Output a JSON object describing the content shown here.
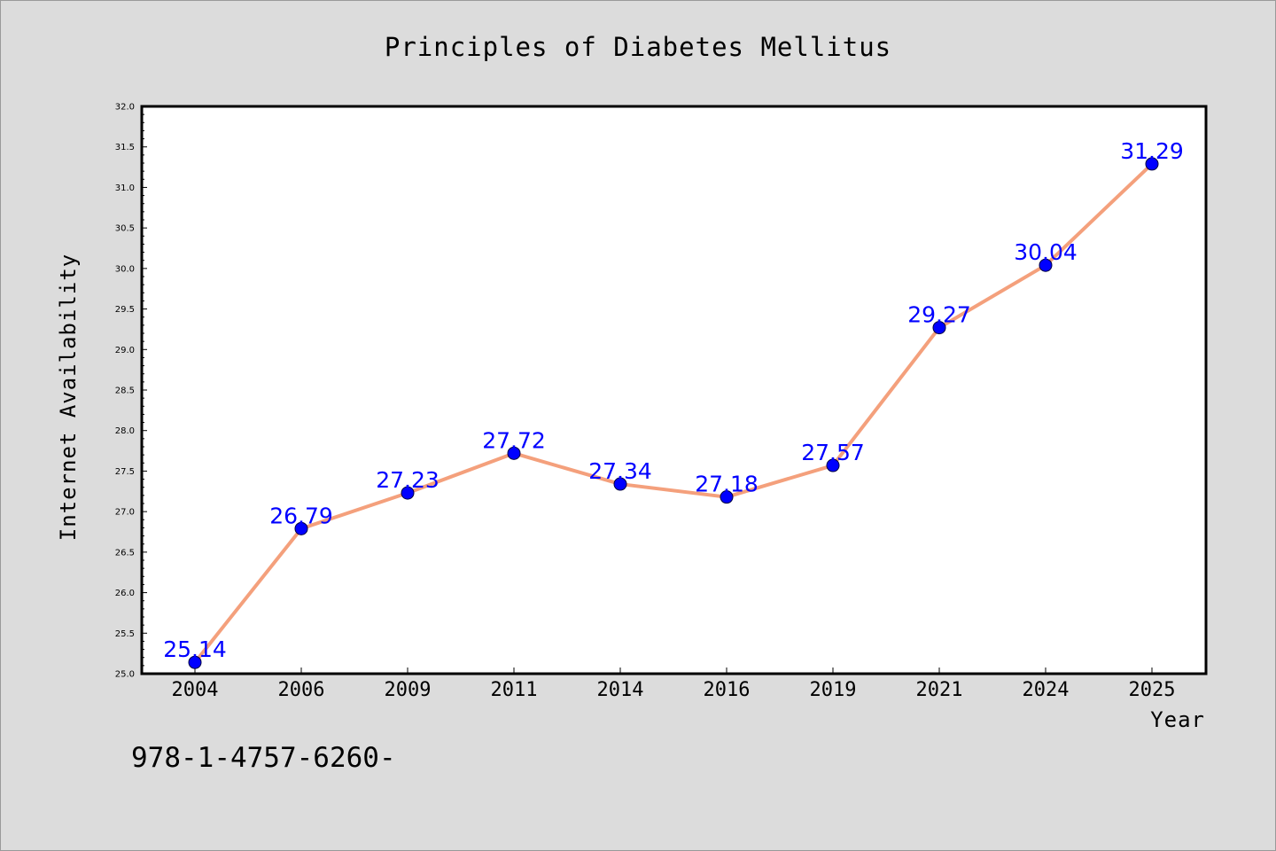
{
  "chart_data": {
    "type": "line",
    "title": "Principles of Diabetes Mellitus",
    "xlabel": "Year",
    "ylabel": "Internet Availability",
    "categories": [
      "2004",
      "2006",
      "2009",
      "2011",
      "2014",
      "2016",
      "2019",
      "2021",
      "2024",
      "2025"
    ],
    "values": [
      25.14,
      26.79,
      27.23,
      27.72,
      27.34,
      27.18,
      27.57,
      29.27,
      30.04,
      31.29
    ],
    "data_labels": [
      "25.14",
      "26.79",
      "27.23",
      "27.72",
      "27.34",
      "27.18",
      "27.57",
      "29.27",
      "30.04",
      "31.29"
    ],
    "ylim": [
      25.0,
      32.0
    ],
    "yticks": [
      "25.0",
      "25.5",
      "26.0",
      "26.5",
      "27.0",
      "27.5",
      "28.0",
      "28.5",
      "29.0",
      "29.5",
      "30.0",
      "30.5",
      "31.0",
      "31.5",
      "32.0"
    ],
    "grid": false,
    "legend": "none",
    "colors": {
      "line": "#f4a07c",
      "marker": "#0000ff",
      "label": "#0000ff",
      "plot_bg": "#ffffff",
      "figure_bg": "#dcdcdc"
    }
  },
  "footer": {
    "isbn": "978-1-4757-6260-"
  }
}
